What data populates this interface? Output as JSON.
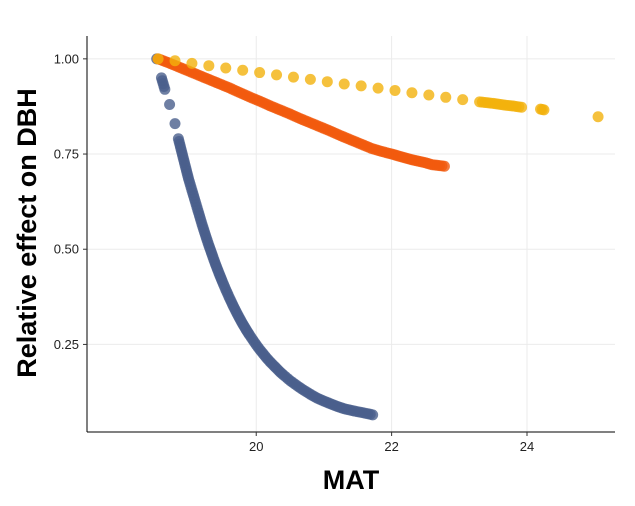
{
  "chart_data": {
    "type": "scatter",
    "title": "",
    "xlabel": "MAT",
    "ylabel": "Relative effect on DBH",
    "xlim": [
      17.5,
      25.3
    ],
    "ylim": [
      0.02,
      1.06
    ],
    "x_ticks": [
      20,
      22,
      24
    ],
    "y_ticks": [
      0.25,
      0.5,
      0.75,
      1.0
    ],
    "x_tick_labels": [
      "20",
      "22",
      "24"
    ],
    "y_tick_labels": [
      "0.25",
      "0.50",
      "0.75",
      "1.00"
    ],
    "grid": true,
    "legend": "none",
    "series": [
      {
        "color": "#4a5f8c",
        "x": [
          18.53,
          18.6,
          18.65,
          18.72,
          18.8,
          18.85,
          18.9,
          18.95,
          19.0,
          19.05,
          19.1,
          19.15,
          19.2,
          19.25,
          19.3,
          19.35,
          19.4,
          19.45,
          19.5,
          19.55,
          19.6,
          19.65,
          19.7,
          19.75,
          19.8,
          19.85,
          19.9,
          19.95,
          20.0,
          20.05,
          20.1,
          20.15,
          20.2,
          20.25,
          20.3,
          20.35,
          20.4,
          20.5,
          20.6,
          20.7,
          20.8,
          20.9,
          21.0,
          21.1,
          21.2,
          21.3,
          21.45,
          21.65,
          21.72
        ],
        "y": [
          1.0,
          0.95,
          0.92,
          0.88,
          0.83,
          0.79,
          0.755,
          0.72,
          0.685,
          0.655,
          0.625,
          0.595,
          0.565,
          0.537,
          0.51,
          0.485,
          0.46,
          0.437,
          0.415,
          0.394,
          0.374,
          0.355,
          0.337,
          0.32,
          0.304,
          0.289,
          0.275,
          0.262,
          0.249,
          0.237,
          0.226,
          0.215,
          0.205,
          0.196,
          0.187,
          0.178,
          0.17,
          0.155,
          0.142,
          0.13,
          0.119,
          0.109,
          0.101,
          0.094,
          0.087,
          0.081,
          0.075,
          0.068,
          0.065
        ]
      },
      {
        "color": "#f15a0e",
        "x": [
          18.55,
          18.7,
          18.85,
          19.0,
          19.15,
          19.3,
          19.45,
          19.6,
          19.75,
          19.9,
          20.05,
          20.2,
          20.35,
          20.5,
          20.65,
          20.8,
          20.95,
          21.1,
          21.25,
          21.4,
          21.55,
          21.7,
          21.85,
          22.0,
          22.1,
          22.2,
          22.3,
          22.4,
          22.5,
          22.6,
          22.78
        ],
        "y": [
          1.0,
          0.99,
          0.979,
          0.968,
          0.957,
          0.946,
          0.935,
          0.924,
          0.912,
          0.9,
          0.889,
          0.877,
          0.866,
          0.855,
          0.843,
          0.832,
          0.821,
          0.81,
          0.798,
          0.787,
          0.776,
          0.765,
          0.757,
          0.75,
          0.745,
          0.74,
          0.735,
          0.731,
          0.727,
          0.722,
          0.718
        ]
      },
      {
        "color": "#f2b10d",
        "x": [
          18.55,
          18.8,
          19.05,
          19.3,
          19.55,
          19.8,
          20.05,
          20.3,
          20.55,
          20.8,
          21.05,
          21.3,
          21.55,
          21.8,
          22.05,
          22.3,
          22.55,
          22.8,
          23.05,
          23.3,
          23.5,
          23.65,
          23.8,
          23.92,
          24.2,
          24.25,
          25.05
        ],
        "y": [
          1.0,
          0.995,
          0.988,
          0.982,
          0.976,
          0.97,
          0.964,
          0.958,
          0.952,
          0.946,
          0.94,
          0.934,
          0.929,
          0.923,
          0.917,
          0.911,
          0.905,
          0.899,
          0.893,
          0.887,
          0.883,
          0.879,
          0.876,
          0.873,
          0.868,
          0.866,
          0.848
        ]
      }
    ]
  }
}
